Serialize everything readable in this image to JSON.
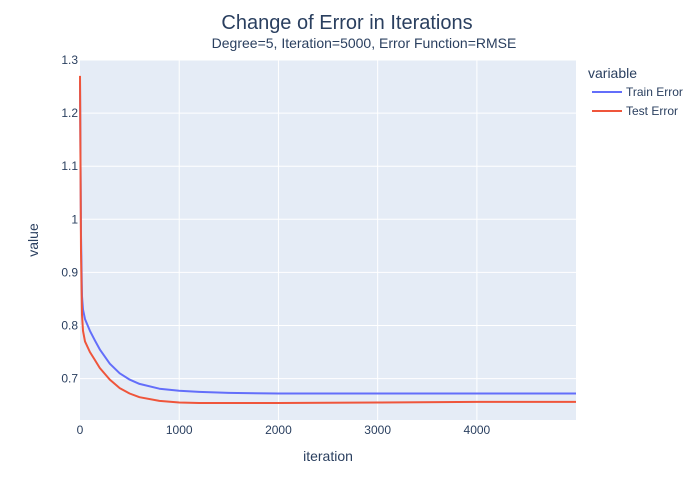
{
  "chart_data": {
    "type": "line",
    "title": "Change of Error in Iterations",
    "subtitle": "Degree=5, Iteration=5000, Error Function=RMSE",
    "xlabel": "iteration",
    "ylabel": "value",
    "xlim": [
      0,
      4999
    ],
    "ylim": [
      0.622,
      1.3
    ],
    "x_ticks": [
      0,
      1000,
      2000,
      3000,
      4000
    ],
    "y_ticks": [
      0.7,
      0.8,
      0.9,
      1,
      1.1,
      1.2,
      1.3
    ],
    "grid": true,
    "plot_background": "#e5ecf6",
    "legend": {
      "title": "variable",
      "position": "top-right"
    },
    "series": [
      {
        "name": "Train Error",
        "color": "#636efa",
        "x": [
          0,
          10,
          20,
          30,
          50,
          100,
          150,
          200,
          300,
          400,
          500,
          600,
          800,
          1000,
          1200,
          1500,
          2000,
          3000,
          4000,
          4999
        ],
        "y": [
          1.26,
          0.97,
          0.855,
          0.83,
          0.812,
          0.79,
          0.772,
          0.755,
          0.728,
          0.71,
          0.698,
          0.69,
          0.681,
          0.677,
          0.675,
          0.673,
          0.672,
          0.672,
          0.672,
          0.672
        ]
      },
      {
        "name": "Test Error",
        "color": "#ef553b",
        "x": [
          0,
          10,
          20,
          30,
          50,
          100,
          150,
          200,
          300,
          400,
          500,
          600,
          800,
          1000,
          1200,
          1500,
          2000,
          3000,
          4000,
          4999
        ],
        "y": [
          1.27,
          0.94,
          0.82,
          0.79,
          0.77,
          0.75,
          0.735,
          0.72,
          0.698,
          0.682,
          0.672,
          0.665,
          0.658,
          0.655,
          0.654,
          0.654,
          0.654,
          0.655,
          0.656,
          0.656
        ]
      }
    ]
  }
}
